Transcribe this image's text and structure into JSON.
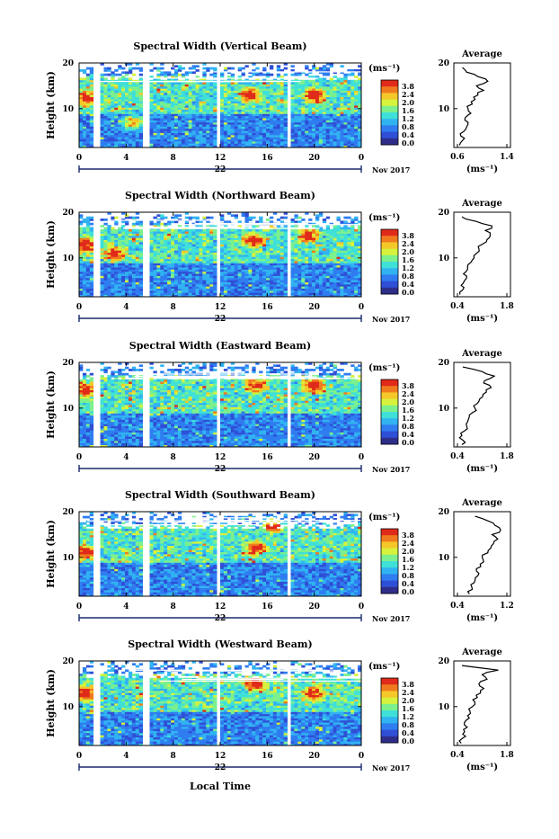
{
  "figure": {
    "xlabel": "Local Time",
    "ylabel": "Height (km)",
    "date_label": "22",
    "month_label": "Nov 2017",
    "colorbar_unit": "(ms⁻¹)",
    "colorbar_ticks": [
      "3.8",
      "2.4",
      "2.0",
      "1.6",
      "1.2",
      "0.8",
      "0.4",
      "0.0"
    ],
    "x_ticks": [
      "0",
      "4",
      "8",
      "12",
      "16",
      "20",
      "0"
    ],
    "y_ticks": [
      "10",
      "20"
    ],
    "avg_title": "Average",
    "avg_xlabel": "(ms⁻¹)",
    "colormap": [
      "#2e2e8a",
      "#2f4fd6",
      "#2f7df0",
      "#31b3f2",
      "#3fe0d8",
      "#7cf08c",
      "#d6f23c",
      "#f5c82a",
      "#f07a1e",
      "#e02a1a"
    ]
  },
  "chart_data": [
    {
      "type": "heatmap",
      "title": "Spectral Width (Vertical Beam)",
      "x_range_hours": [
        0,
        24
      ],
      "y_range_km": [
        1.5,
        20
      ],
      "gap_columns_hours": [
        1.5,
        5.8,
        11.8,
        17.8
      ],
      "high_width_regions": [
        {
          "t": 0.5,
          "h": 12.5
        },
        {
          "t": 4.5,
          "h": 7
        },
        {
          "t": 14.5,
          "h": 13
        },
        {
          "t": 20,
          "h": 13
        }
      ],
      "average_profile": {
        "xlim": [
          0.6,
          1.4
        ],
        "x_ticks": [
          "0.6",
          "1.4"
        ],
        "height_km": [
          2,
          3,
          4,
          5,
          6,
          7,
          8,
          9,
          10,
          11,
          12,
          13,
          14,
          15,
          16,
          17,
          18,
          19
        ],
        "value": [
          0.68,
          0.72,
          0.7,
          0.74,
          0.78,
          0.8,
          0.76,
          0.84,
          0.8,
          0.86,
          0.9,
          0.94,
          1.02,
          0.92,
          1.08,
          0.94,
          0.78,
          0.72
        ]
      }
    },
    {
      "type": "heatmap",
      "title": "Spectral Width (Northward Beam)",
      "x_range_hours": [
        0,
        24
      ],
      "y_range_km": [
        1.5,
        20
      ],
      "gap_columns_hours": [
        1.5,
        5.8,
        11.8,
        17.8
      ],
      "high_width_regions": [
        {
          "t": 0.5,
          "h": 13
        },
        {
          "t": 3,
          "h": 11
        },
        {
          "t": 14.8,
          "h": 14
        },
        {
          "t": 19.5,
          "h": 15
        }
      ],
      "average_profile": {
        "xlim": [
          0.4,
          1.8
        ],
        "x_ticks": [
          "0.4",
          "1.8"
        ],
        "height_km": [
          2,
          3,
          4,
          5,
          6,
          7,
          8,
          9,
          10,
          11,
          12,
          13,
          14,
          15,
          16,
          17,
          18,
          19
        ],
        "value": [
          0.55,
          0.62,
          0.58,
          0.66,
          0.72,
          0.7,
          0.74,
          0.82,
          0.9,
          0.96,
          1.02,
          1.1,
          1.22,
          1.3,
          1.18,
          1.34,
          0.95,
          0.6
        ]
      }
    },
    {
      "type": "heatmap",
      "title": "Spectral Width (Eastward Beam)",
      "x_range_hours": [
        0,
        24
      ],
      "y_range_km": [
        1.5,
        20
      ],
      "gap_columns_hours": [
        1.5,
        5.8,
        11.8,
        17.8
      ],
      "high_width_regions": [
        {
          "t": 0.5,
          "h": 14
        },
        {
          "t": 15,
          "h": 15
        },
        {
          "t": 20,
          "h": 15
        }
      ],
      "average_profile": {
        "xlim": [
          0.4,
          1.8
        ],
        "x_ticks": [
          "0.4",
          "1.8"
        ],
        "height_km": [
          2,
          3,
          4,
          5,
          6,
          7,
          8,
          9,
          10,
          11,
          12,
          13,
          14,
          15,
          16,
          17,
          18,
          19
        ],
        "value": [
          0.6,
          0.62,
          0.6,
          0.66,
          0.72,
          0.74,
          0.78,
          0.86,
          0.92,
          0.98,
          1.04,
          1.12,
          1.2,
          1.28,
          1.16,
          1.4,
          1.1,
          0.62
        ]
      }
    },
    {
      "type": "heatmap",
      "title": "Spectral Width (Southward Beam)",
      "x_range_hours": [
        0,
        24
      ],
      "y_range_km": [
        1.5,
        20
      ],
      "gap_columns_hours": [
        1.5,
        5.8,
        11.8,
        17.8
      ],
      "high_width_regions": [
        {
          "t": 0.5,
          "h": 11
        },
        {
          "t": 15,
          "h": 12
        },
        {
          "t": 16.5,
          "h": 17
        }
      ],
      "average_profile": {
        "xlim": [
          0.4,
          1.2
        ],
        "x_ticks": [
          "0.4",
          "1.2"
        ],
        "height_km": [
          2,
          3,
          4,
          5,
          6,
          7,
          8,
          9,
          10,
          11,
          12,
          13,
          14,
          15,
          16,
          17,
          18,
          19
        ],
        "value": [
          0.62,
          0.66,
          0.64,
          0.7,
          0.74,
          0.72,
          0.78,
          0.82,
          0.8,
          0.88,
          0.92,
          0.96,
          1.02,
          0.94,
          1.06,
          0.98,
          0.88,
          0.7
        ]
      }
    },
    {
      "type": "heatmap",
      "title": "Spectral Width (Westward Beam)",
      "x_range_hours": [
        0,
        24
      ],
      "y_range_km": [
        1.5,
        20
      ],
      "gap_columns_hours": [
        1.5,
        5.8,
        11.8,
        17.8
      ],
      "high_width_regions": [
        {
          "t": 0.5,
          "h": 13
        },
        {
          "t": 15,
          "h": 15
        },
        {
          "t": 20,
          "h": 13
        }
      ],
      "average_profile": {
        "xlim": [
          0.4,
          1.8
        ],
        "x_ticks": [
          "0.4",
          "1.8"
        ],
        "height_km": [
          2,
          3,
          4,
          5,
          6,
          7,
          8,
          9,
          10,
          11,
          12,
          13,
          14,
          15,
          16,
          17,
          18,
          19
        ],
        "value": [
          0.58,
          0.6,
          0.62,
          0.64,
          0.66,
          0.7,
          0.74,
          0.8,
          0.86,
          0.92,
          0.98,
          1.06,
          1.14,
          1.02,
          1.22,
          1.1,
          1.5,
          0.6
        ]
      }
    }
  ]
}
